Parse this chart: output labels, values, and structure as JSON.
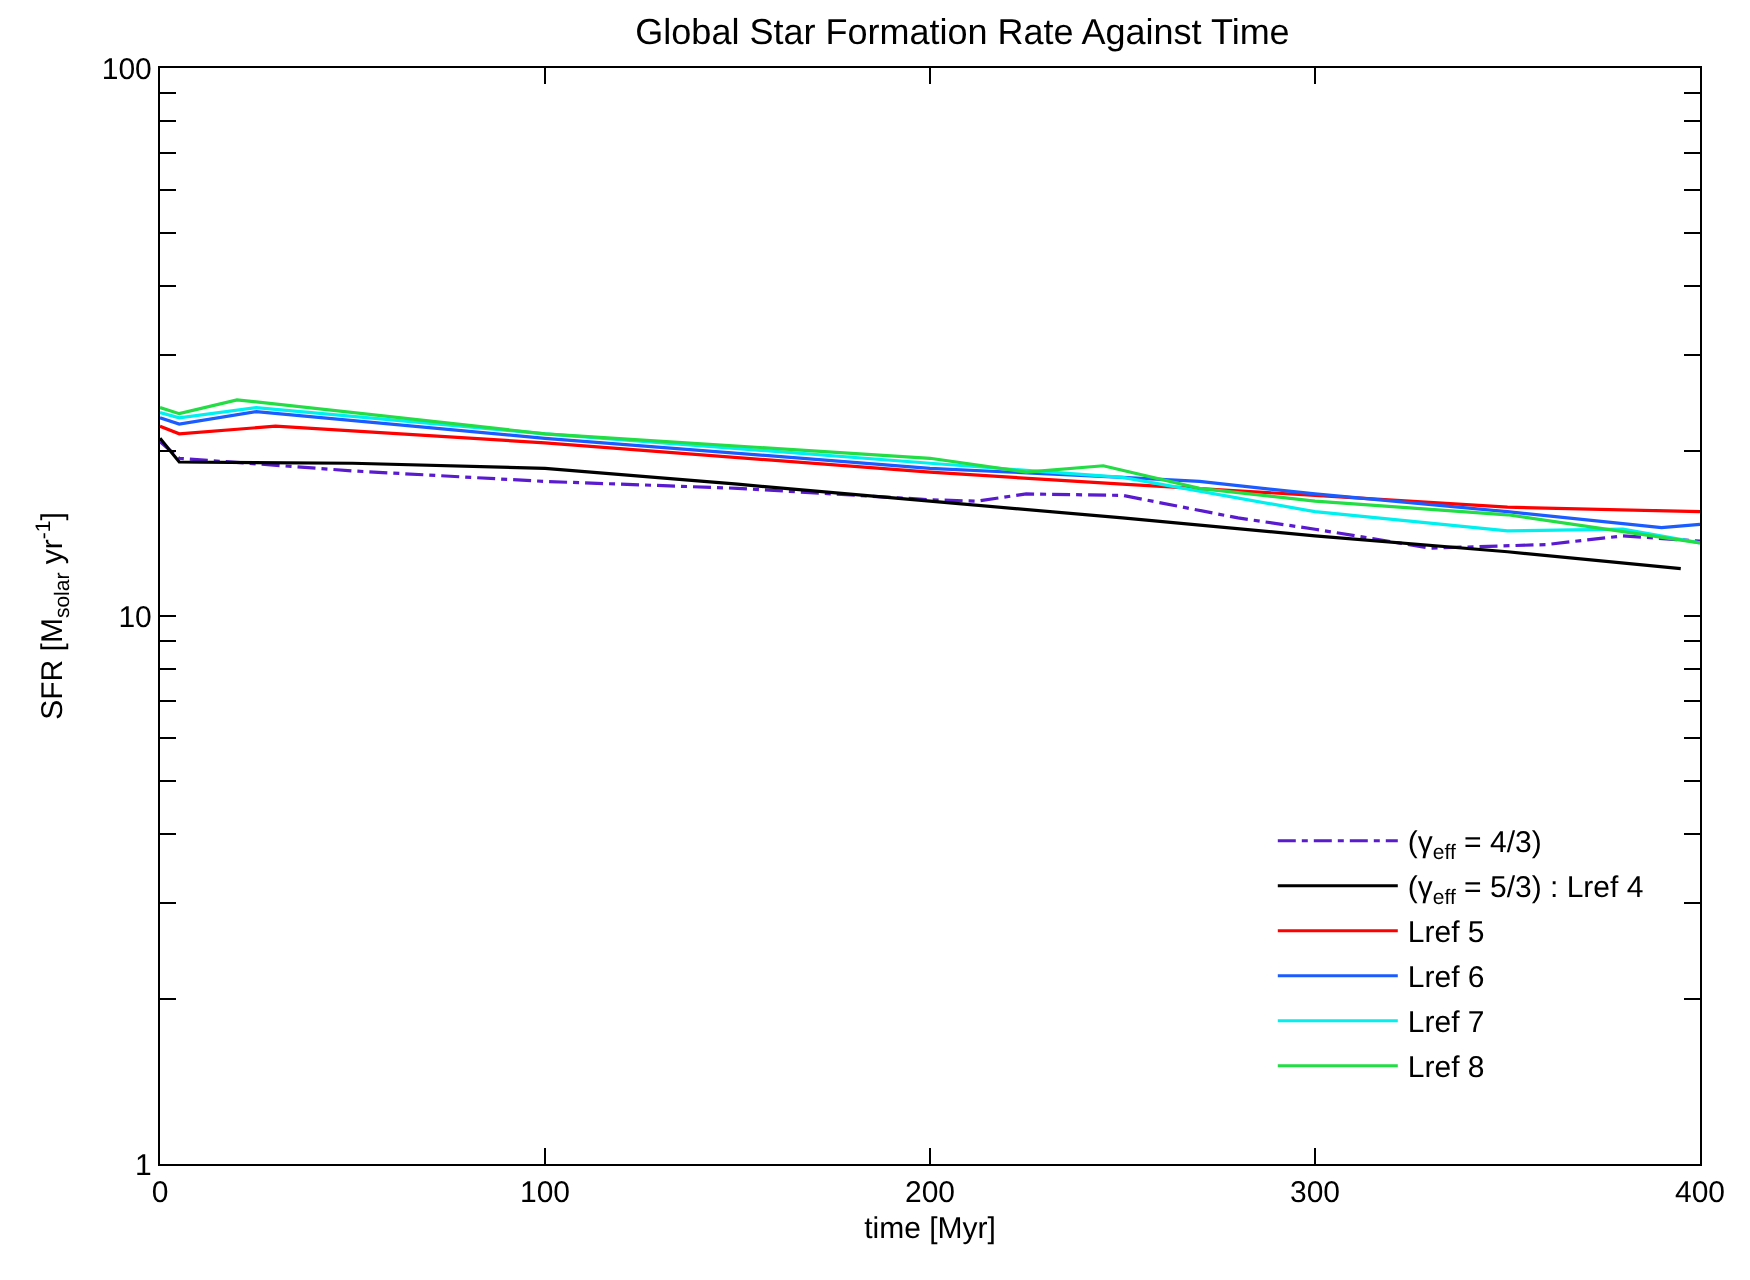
{
  "chart_data": {
    "type": "line",
    "title": "Global Star Formation Rate Against Time",
    "xlabel": "time [Myr]",
    "ylabel": "SFR [M$_{solar}$ yr$^{-1}$]",
    "xlim": [
      0,
      400
    ],
    "xticks": [
      0,
      100,
      200,
      300,
      400
    ],
    "ylim": [
      1,
      100
    ],
    "log": true,
    "yticks": [
      1,
      {
        "value": 2,
        "label": null
      },
      {
        "value": 3,
        "label": null
      },
      {
        "value": 4,
        "label": null
      },
      {
        "value": 5,
        "label": null
      },
      {
        "value": 6,
        "label": null
      },
      {
        "value": 7,
        "label": null
      },
      {
        "value": 8,
        "label": null
      },
      {
        "value": 9,
        "label": null
      },
      10,
      {
        "value": 20,
        "label": null
      },
      {
        "value": 30,
        "label": null
      },
      {
        "value": 40,
        "label": null
      },
      {
        "value": 50,
        "label": null
      },
      {
        "value": 60,
        "label": null
      },
      {
        "value": 70,
        "label": null
      },
      {
        "value": 80,
        "label": null
      },
      {
        "value": 90,
        "label": null
      },
      100
    ],
    "legend": "bottom right",
    "marker": "none",
    "series": [
      {
        "name": "(γ$_{eff}$ = 4/3)",
        "color": "#5a1ad0",
        "line_style": "dashdot",
        "x": [
          0,
          5,
          50,
          100,
          150,
          200,
          212,
          225,
          250,
          280,
          300,
          330,
          360,
          380,
          400
        ],
        "values": [
          20.8,
          19.4,
          18.4,
          17.6,
          17.1,
          16.3,
          16.2,
          16.7,
          16.6,
          15.1,
          14.4,
          13.3,
          13.5,
          14.0,
          13.7
        ]
      },
      {
        "name": "(γ$_{eff}$ = 5/3) : Lref 4",
        "color": "#000000",
        "x": [
          0,
          5,
          50,
          100,
          150,
          200,
          250,
          300,
          350,
          395
        ],
        "values": [
          21.1,
          19.1,
          19.0,
          18.6,
          17.4,
          16.2,
          15.1,
          14.0,
          13.1,
          12.2
        ]
      },
      {
        "name": "Lref 5",
        "color": "#ff0000",
        "x": [
          0,
          5,
          30,
          100,
          200,
          250,
          300,
          350,
          400
        ],
        "values": [
          22.2,
          21.5,
          22.2,
          20.7,
          18.3,
          17.4,
          16.6,
          15.8,
          15.5
        ]
      },
      {
        "name": "Lref 6",
        "color": "#1a5cff",
        "x": [
          0,
          5,
          25,
          100,
          200,
          250,
          270,
          300,
          350,
          390,
          400
        ],
        "values": [
          23.0,
          22.4,
          23.6,
          21.1,
          18.6,
          17.9,
          17.6,
          16.7,
          15.5,
          14.5,
          14.7
        ]
      },
      {
        "name": "Lref 7",
        "color": "#00f0f0",
        "x": [
          0,
          5,
          25,
          100,
          200,
          250,
          300,
          350,
          380,
          400
        ],
        "values": [
          23.5,
          23.0,
          24.0,
          21.5,
          19.0,
          17.9,
          15.5,
          14.3,
          14.4,
          13.6
        ]
      },
      {
        "name": "Lref 8",
        "color": "#22dd44",
        "x": [
          0,
          5,
          20,
          100,
          200,
          225,
          245,
          270,
          300,
          350,
          400
        ],
        "values": [
          24.0,
          23.4,
          24.8,
          21.5,
          19.4,
          18.3,
          18.8,
          17.1,
          16.2,
          15.3,
          13.6
        ]
      }
    ]
  }
}
